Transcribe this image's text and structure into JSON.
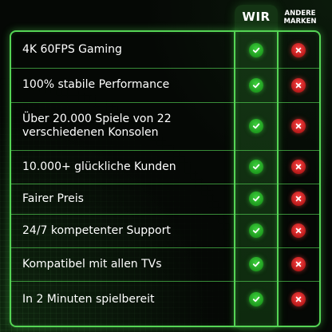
{
  "header": {
    "wir": "WIR",
    "andere_line1": "ANDERE",
    "andere_line2": "MARKEN"
  },
  "rows": [
    {
      "label": "4K 60FPS Gaming",
      "wir": "check-icon",
      "andere": "cross-icon"
    },
    {
      "label": "100% stabile Performance",
      "wir": "check-icon",
      "andere": "cross-icon"
    },
    {
      "label": "Über 20.000 Spiele von 22 verschiedenen Konsolen",
      "wir": "check-icon",
      "andere": "cross-icon"
    },
    {
      "label": "10.000+ glückliche Kunden",
      "wir": "check-icon",
      "andere": "cross-icon"
    },
    {
      "label": "Fairer Preis",
      "wir": "check-icon",
      "andere": "cross-icon"
    },
    {
      "label": "24/7 kompetenter Support",
      "wir": "check-icon",
      "andere": "cross-icon"
    },
    {
      "label": "Kompatibel mit allen TVs",
      "wir": "check-icon",
      "andere": "cross-icon"
    },
    {
      "label": "In 2 Minuten spielbereit",
      "wir": "check-icon",
      "andere": "cross-icon"
    }
  ],
  "colors": {
    "accent_green": "#55d455",
    "check_green": "#2fbf2f",
    "cross_red": "#e52b2b",
    "background": "#050805"
  }
}
